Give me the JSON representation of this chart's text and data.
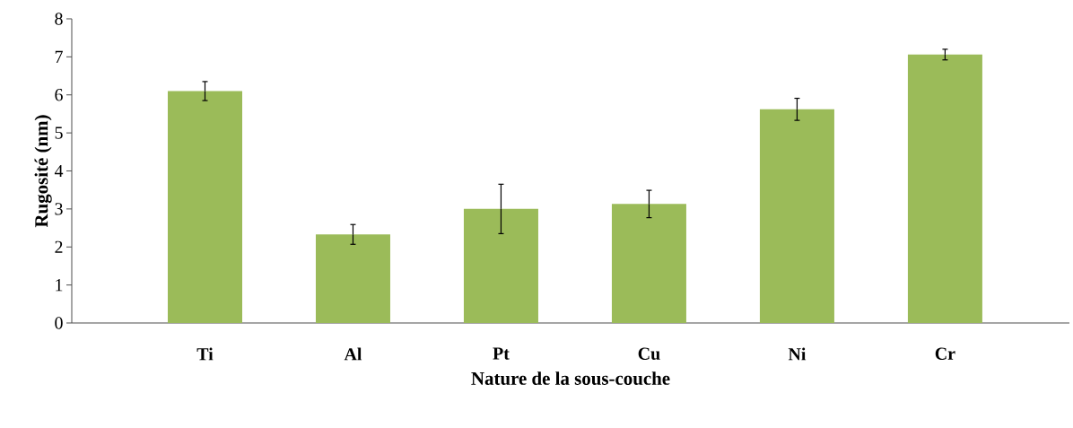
{
  "chart_data": {
    "type": "bar",
    "xlabel": "Nature de la sous-couche",
    "ylabel": "Rugosité (nm)",
    "categories": [
      "Ti",
      "Al",
      "Pt",
      "Cu",
      "Ni",
      "Cr"
    ],
    "values": [
      6.1,
      2.33,
      3.0,
      3.13,
      5.62,
      7.06
    ],
    "errors": [
      0.25,
      0.26,
      0.65,
      0.36,
      0.29,
      0.14
    ],
    "color": "#9bbb59",
    "ylim": [
      0,
      8
    ],
    "yticks": [
      0,
      1,
      2,
      3,
      4,
      5,
      6,
      7,
      8
    ],
    "grid": false
  }
}
